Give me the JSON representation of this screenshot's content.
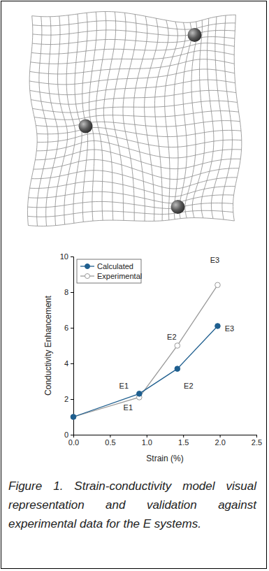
{
  "caption": "Figure 1. Strain-conductivity model visual representation and validation against experimental data for the E systems.",
  "chart_data": {
    "type": "line",
    "x_label": "Strain (%)",
    "y_label": "Conductivity Enhancement",
    "xlim": [
      0,
      2.5
    ],
    "xticks": [
      {
        "value": 0,
        "label": "0.0"
      },
      0.5,
      {
        "value": 1,
        "label": "1.0"
      },
      1.5,
      {
        "value": 2,
        "label": "2.0"
      },
      2.5
    ],
    "ylim": [
      0,
      10
    ],
    "yticks": [
      0,
      2,
      4,
      6,
      8,
      10
    ],
    "legend": "upper left",
    "x": [
      0,
      0.9,
      1.42,
      1.97
    ],
    "series": [
      {
        "name": "Calculated",
        "color": "#1f5f8f",
        "marker": "circle",
        "line_style": "solid",
        "values": [
          1.0,
          2.3,
          3.7,
          6.1
        ],
        "labels": [
          null,
          "E1",
          "E2",
          "E3"
        ]
      },
      {
        "name": "Experimental",
        "color": "#999999",
        "marker": "open-circle",
        "line_style": "solid",
        "values": [
          1.0,
          2.1,
          5.0,
          8.4
        ],
        "labels": [
          null,
          "E1",
          "E2",
          "E3"
        ]
      }
    ]
  }
}
